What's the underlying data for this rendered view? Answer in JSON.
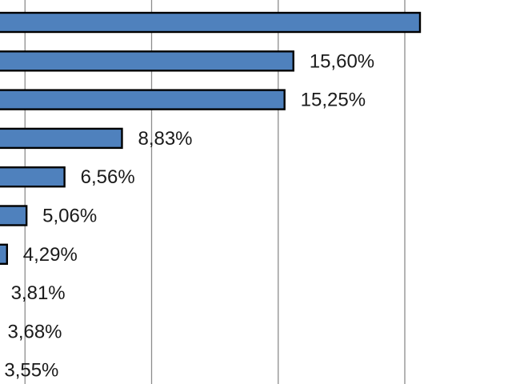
{
  "chart_data": {
    "type": "bar",
    "orientation": "horizontal",
    "values": [
      20.6,
      15.6,
      15.25,
      8.83,
      6.56,
      5.06,
      4.29,
      3.81,
      3.68,
      3.55
    ],
    "labels": [
      "",
      "15,60%",
      "15,25%",
      "8,83%",
      "6,56%",
      "5,06%",
      "4,29%",
      "3,81%",
      "3,68%",
      "3,55%"
    ],
    "grid": true,
    "legend": "none"
  },
  "colors": {
    "bar_fill": "#4f81bd",
    "bar_stroke": "#000000",
    "grid": "#8c8c8c"
  }
}
